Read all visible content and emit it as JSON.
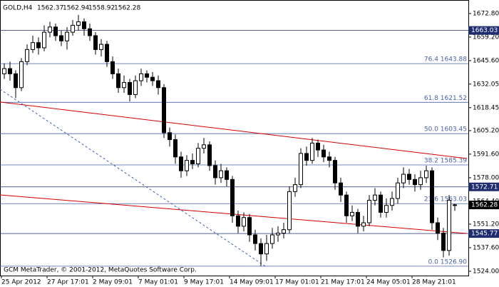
{
  "chart_data": {
    "type": "candlestick",
    "title": "GOLD,H4",
    "footer": "GCM MetaTrader, © 2001-2012, MetaQuotes Software Corp.",
    "categories": [
      "25 Apr 2012",
      null,
      null,
      null,
      null,
      null,
      null,
      null,
      "27 Apr 17:01",
      null,
      null,
      null,
      null,
      null,
      null,
      null,
      "2 May 09:01",
      null,
      null,
      null,
      null,
      null,
      null,
      null,
      "7 May 01:01",
      null,
      null,
      null,
      null,
      null,
      null,
      null,
      "9 May 17:01",
      null,
      null,
      null,
      null,
      null,
      null,
      null,
      "14 May 09:01",
      null,
      null,
      null,
      null,
      null,
      null,
      null,
      "17 May 01:01",
      null,
      null,
      null,
      null,
      null,
      null,
      null,
      "21 May 17:01",
      null,
      null,
      null,
      null,
      null,
      null,
      null,
      "24 May 05:01",
      null,
      null,
      null,
      null,
      null,
      null,
      null,
      "28 May 21:01",
      null,
      null,
      null,
      null,
      null,
      null,
      null
    ],
    "open": [
      1638,
      1641,
      1638,
      1630,
      1645,
      1652,
      1656,
      1653,
      1662,
      1665,
      1660,
      1657,
      1662,
      1666,
      1668,
      1664,
      1660,
      1652,
      1655,
      1645,
      1638,
      1630,
      1633,
      1626,
      1634,
      1638,
      1636,
      1634,
      1630,
      1604,
      1600,
      1590,
      1582,
      1588,
      1586,
      1595,
      1597,
      1585,
      1578,
      1582,
      1577,
      1556,
      1550,
      1555,
      1545,
      1540,
      1534,
      1540,
      1545,
      1546,
      1548,
      1570,
      1574,
      1592,
      1588,
      1598,
      1594,
      1590,
      1588,
      1575,
      1568,
      1556,
      1558,
      1550,
      1552,
      1565,
      1568,
      1558,
      1562,
      1566,
      1575,
      1580,
      1577,
      1574,
      1578,
      1582,
      1552,
      1546,
      1536,
      1562.37
    ],
    "high": [
      1644,
      1645,
      1640,
      1647,
      1655,
      1660,
      1659,
      1666,
      1668,
      1667,
      1663,
      1665,
      1669,
      1672,
      1670,
      1667,
      1662,
      1658,
      1657,
      1648,
      1641,
      1637,
      1635,
      1637,
      1641,
      1640,
      1639,
      1637,
      1632,
      1607,
      1603,
      1593,
      1591,
      1592,
      1598,
      1601,
      1599,
      1588,
      1586,
      1584,
      1579,
      1559,
      1558,
      1557,
      1548,
      1543,
      1545,
      1549,
      1550,
      1552,
      1573,
      1578,
      1595,
      1596,
      1601,
      1600,
      1597,
      1593,
      1590,
      1578,
      1570,
      1562,
      1560,
      1556,
      1568,
      1572,
      1570,
      1566,
      1570,
      1578,
      1584,
      1583,
      1580,
      1582,
      1585,
      1584,
      1555,
      1549,
      1568,
      1562.94
    ],
    "low": [
      1635,
      1634,
      1624,
      1628,
      1643,
      1650,
      1649,
      1651,
      1659,
      1657,
      1654,
      1652,
      1660,
      1663,
      1660,
      1657,
      1649,
      1648,
      1642,
      1635,
      1627,
      1627,
      1622,
      1624,
      1631,
      1633,
      1631,
      1626,
      1601,
      1596,
      1586,
      1578,
      1579,
      1583,
      1584,
      1592,
      1582,
      1574,
      1575,
      1573,
      1552,
      1546,
      1547,
      1541,
      1536,
      1527,
      1530,
      1537,
      1541,
      1543,
      1546,
      1567,
      1572,
      1585,
      1586,
      1590,
      1587,
      1584,
      1571,
      1564,
      1552,
      1553,
      1546,
      1547,
      1550,
      1562,
      1555,
      1555,
      1559,
      1563,
      1572,
      1574,
      1570,
      1571,
      1575,
      1548,
      1542,
      1532,
      1533,
      1558.92
    ],
    "close": [
      1641,
      1638,
      1630,
      1645,
      1652,
      1656,
      1653,
      1662,
      1665,
      1660,
      1657,
      1662,
      1666,
      1668,
      1664,
      1660,
      1652,
      1655,
      1645,
      1638,
      1630,
      1633,
      1626,
      1634,
      1638,
      1636,
      1634,
      1630,
      1604,
      1600,
      1590,
      1582,
      1588,
      1586,
      1595,
      1597,
      1585,
      1578,
      1582,
      1577,
      1556,
      1550,
      1555,
      1545,
      1540,
      1534,
      1540,
      1545,
      1546,
      1548,
      1570,
      1574,
      1592,
      1588,
      1598,
      1594,
      1590,
      1588,
      1575,
      1568,
      1556,
      1558,
      1550,
      1552,
      1565,
      1568,
      1558,
      1562,
      1566,
      1575,
      1580,
      1577,
      1574,
      1578,
      1582,
      1552,
      1546,
      1536,
      1565,
      1562.28
    ],
    "ylim": [
      1521.5,
      1680.6
    ],
    "yticks": [
      {
        "value": 1672.8,
        "label": "1672.80"
      },
      {
        "value": 1659.2,
        "label": "1659.20"
      },
      {
        "value": 1645.6,
        "label": "1645.60"
      },
      1632.05,
      1618.45,
      {
        "value": 1605.2,
        "label": "1605.20"
      },
      {
        "value": 1591.6,
        "label": "1591.60"
      },
      {
        "value": 1578,
        "label": "1578.00"
      },
      {
        "value": 1564.4,
        "label": "1564.40"
      },
      {
        "value": 1551.2,
        "label": "1551.20"
      },
      {
        "value": 1537.6,
        "label": "1537.60"
      },
      {
        "value": 1524,
        "label": "1524.00"
      }
    ],
    "trendlines": [
      {
        "x": [
          -0.75,
          81.125
        ],
        "y": [
          1621.7,
          1589.1
        ],
        "color": "#d40000",
        "dashed": false
      },
      {
        "x": [
          -0.75,
          81.125
        ],
        "y": [
          1568.1,
          1545.8
        ],
        "color": "#d40000",
        "dashed": false
      },
      {
        "x": [
          -0.75,
          45.75
        ],
        "y": [
          1629.1,
          1526.9
        ],
        "color": "#3a5fb0",
        "dashed": true
      }
    ],
    "fibonacci": {
      "color": "#4a62a8",
      "levels": [
        {
          "value": 1643.88,
          "label": "76.4 1643.88"
        },
        {
          "value": 1621.52,
          "label": "61.8 1621.52"
        },
        {
          "value": 1603.45,
          "label": "50.0 1603.45"
        },
        {
          "value": 1585.39,
          "label": "38.2 1585.39"
        },
        {
          "value": 1563.03,
          "label": "23.6 1563.03"
        },
        {
          "value": 1526.9,
          "label": "0.0 1526.90"
        }
      ]
    },
    "hlines": {
      "color": "#1f2d6e",
      "values": [
        1663.03,
        1572.71,
        1545.77
      ]
    },
    "last_price": 1562.28
  }
}
